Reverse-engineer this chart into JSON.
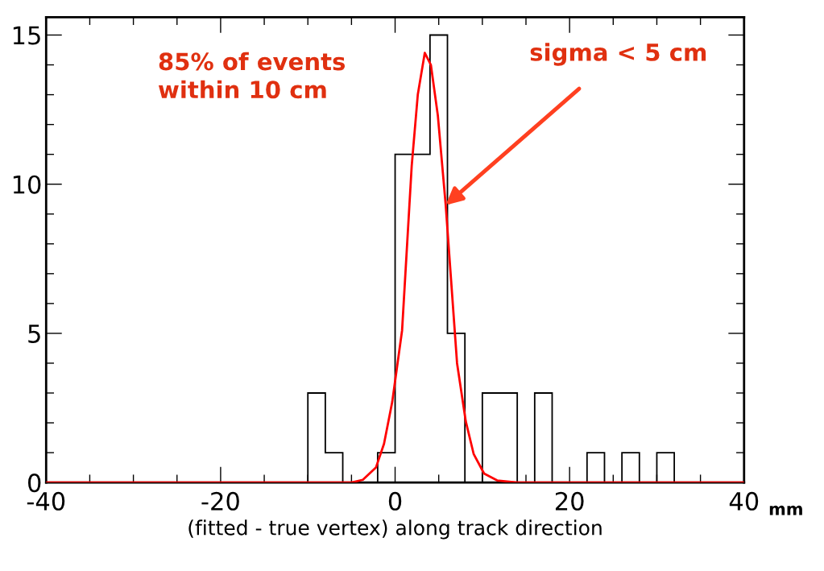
{
  "chart_data": {
    "type": "histogram",
    "xlabel": "(fitted - true vertex) along track direction",
    "bins": [
      -40,
      -38,
      -36,
      -34,
      -32,
      -30,
      -28,
      -26,
      -24,
      -22,
      -20,
      -18,
      -16,
      -14,
      -12,
      -10,
      -8,
      -6,
      -4,
      -2,
      0,
      2,
      4,
      6,
      8,
      10,
      12,
      14,
      16,
      18,
      20,
      22,
      24,
      26,
      28,
      30,
      32,
      34,
      36,
      38,
      40
    ],
    "values": [
      0,
      0,
      0,
      0,
      0,
      0,
      0,
      0,
      0,
      0,
      0,
      0,
      0,
      0,
      0,
      3,
      1,
      0,
      0,
      1,
      11,
      11,
      15,
      5,
      0,
      3,
      3,
      0,
      3,
      0,
      0,
      1,
      0,
      1,
      0,
      1,
      0,
      0,
      0,
      0
    ],
    "color": "#000000",
    "series": [
      {
        "type": "line",
        "color": "#ff0000",
        "x": [
          -40,
          -5,
          -3.7,
          -2.2,
          -1.27,
          -0.33,
          0.8,
          1.9,
          2.6,
          3.4,
          4.1,
          4.9,
          5.8,
          7.1,
          8.1,
          9.0,
          10.2,
          11.7,
          14,
          40
        ],
        "values": [
          0,
          0,
          0.09,
          0.5,
          1.3,
          2.7,
          5.1,
          10.6,
          13.0,
          14.4,
          14.0,
          12.3,
          9.3,
          4.0,
          2.05,
          0.96,
          0.3,
          0.07,
          0,
          0
        ]
      }
    ],
    "annotations": [
      {
        "text": "85% of events\nwithin 10 cm"
      },
      {
        "text": "sigma < 5 cm",
        "x": 5.8,
        "y": 9.3
      },
      {
        "text": "mm"
      }
    ],
    "xlim": [
      -40,
      40
    ],
    "ylim": [
      0,
      15.6
    ],
    "xticks": [
      -40,
      -20,
      0,
      20,
      40
    ],
    "yticks": [
      0,
      5,
      10,
      15
    ],
    "grid": false,
    "legend": false
  }
}
